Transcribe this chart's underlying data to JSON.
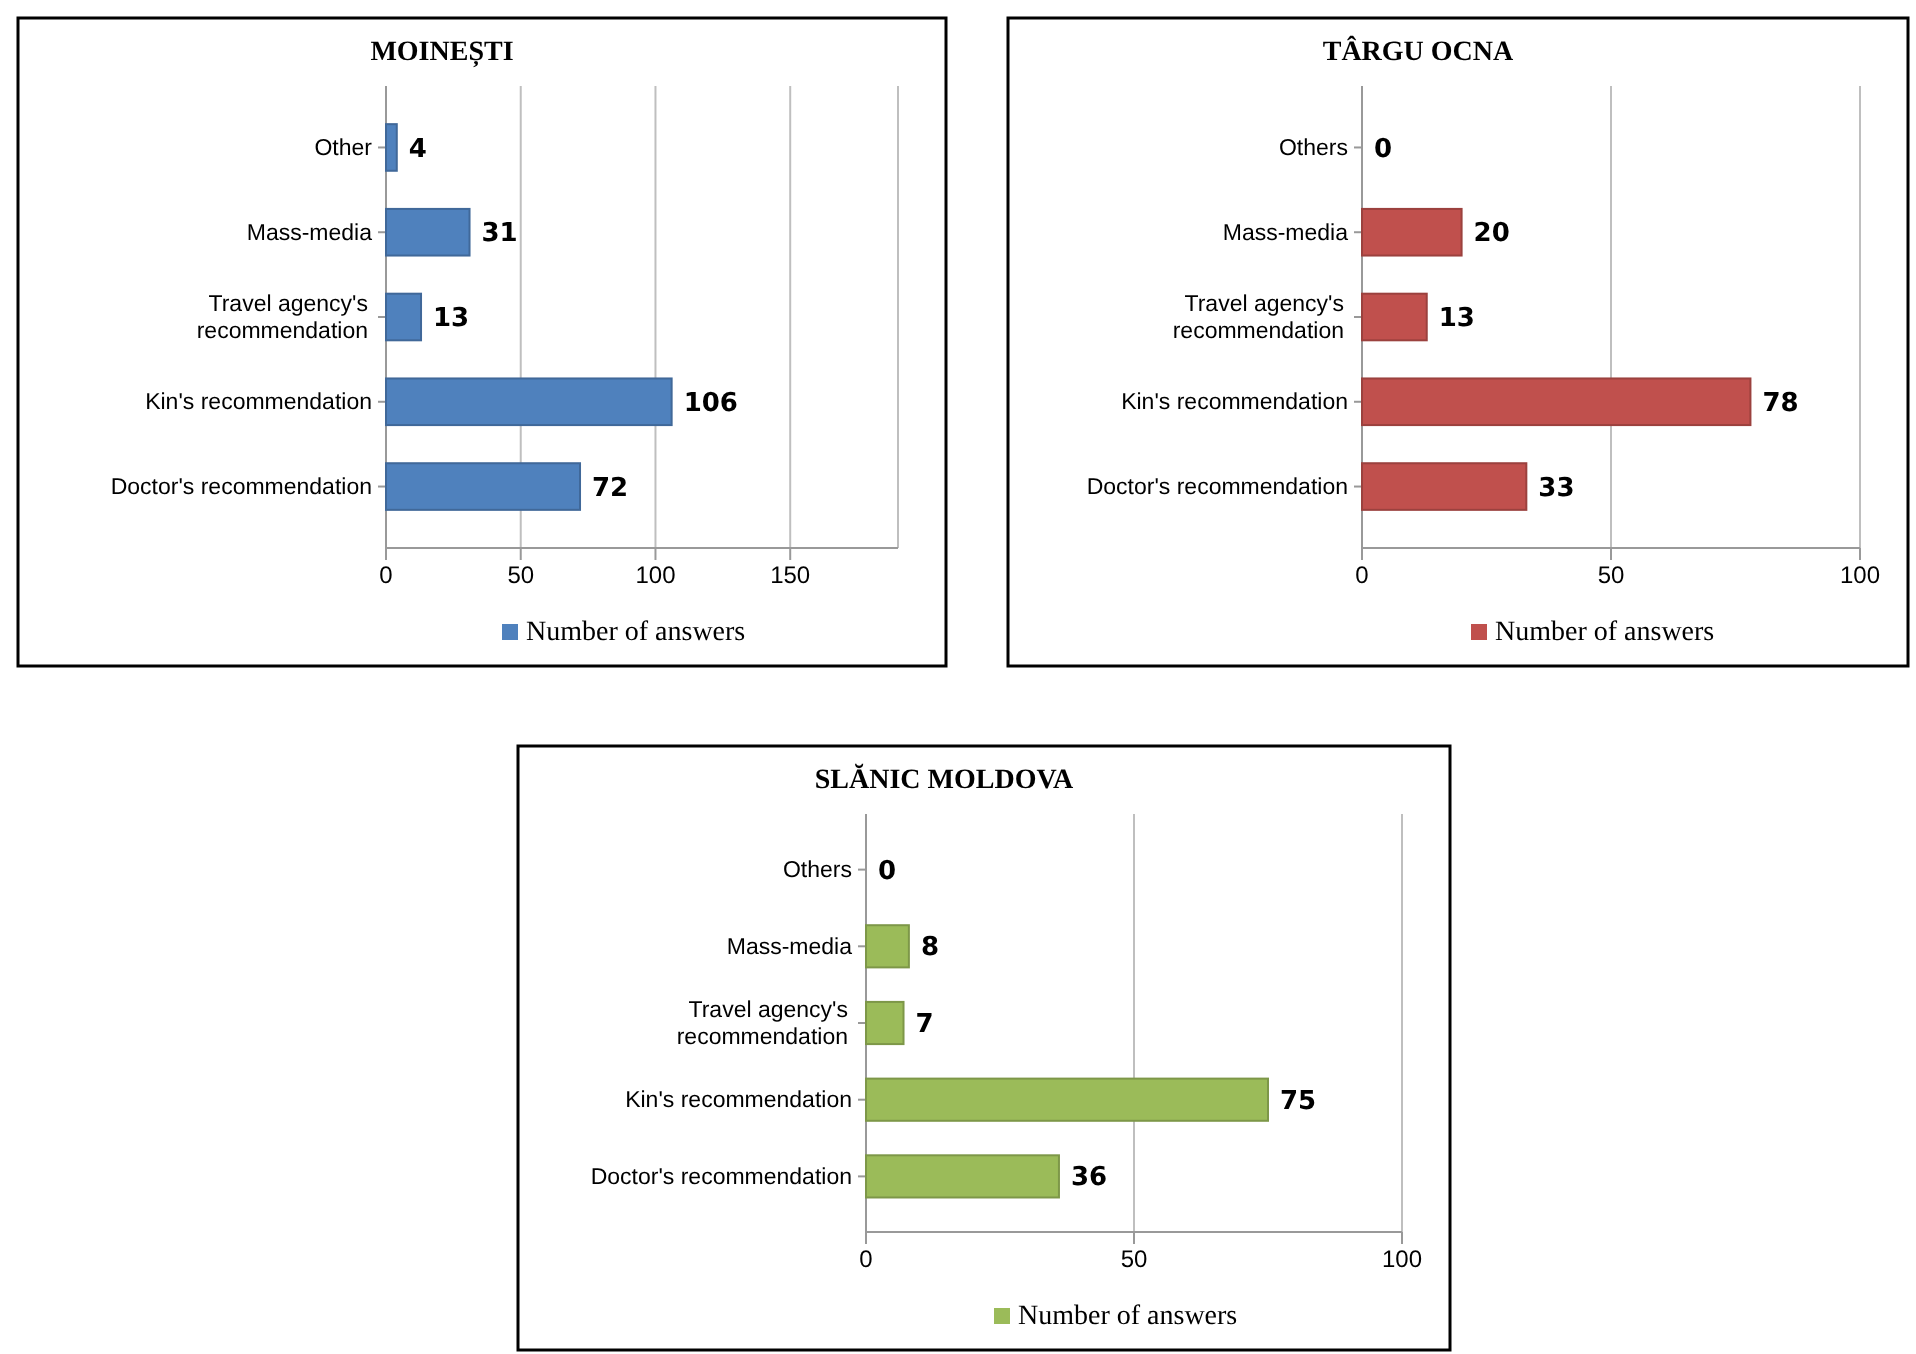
{
  "chart_data": [
    {
      "type": "bar",
      "orientation": "horizontal",
      "title": "MOINEȘTI",
      "categories": [
        "Other",
        "Mass-media",
        "Travel agency's recommendation",
        "Kin's recommendation",
        "Doctor's recommendation"
      ],
      "series": [
        {
          "name": "Number of answers",
          "color": "#4f81bd",
          "values": [
            4,
            31,
            13,
            106,
            72
          ]
        }
      ],
      "xlim": [
        0,
        190
      ],
      "xticks": [
        0,
        50,
        100,
        150
      ],
      "grid": "x",
      "data_labels": true,
      "legend": "bottom"
    },
    {
      "type": "bar",
      "orientation": "horizontal",
      "title": "TÂRGU OCNA",
      "categories": [
        "Others",
        "Mass-media",
        "Travel agency's recommendation",
        "Kin's recommendation",
        "Doctor's recommendation"
      ],
      "series": [
        {
          "name": "Number of answers",
          "color": "#c0504d",
          "values": [
            0,
            20,
            13,
            78,
            33
          ]
        }
      ],
      "xlim": [
        0,
        100
      ],
      "xticks": [
        0,
        50,
        100
      ],
      "grid": "x",
      "data_labels": true,
      "legend": "bottom"
    },
    {
      "type": "bar",
      "orientation": "horizontal",
      "title": "SLĂNIC MOLDOVA",
      "categories": [
        "Others",
        "Mass-media",
        "Travel agency's recommendation",
        "Kin's recommendation",
        "Doctor's recommendation"
      ],
      "series": [
        {
          "name": "Number of answers",
          "color": "#9bbb59",
          "values": [
            0,
            8,
            7,
            75,
            36
          ]
        }
      ],
      "xlim": [
        0,
        100
      ],
      "xticks": [
        0,
        50,
        100
      ],
      "grid": "x",
      "data_labels": true,
      "legend": "bottom"
    }
  ]
}
